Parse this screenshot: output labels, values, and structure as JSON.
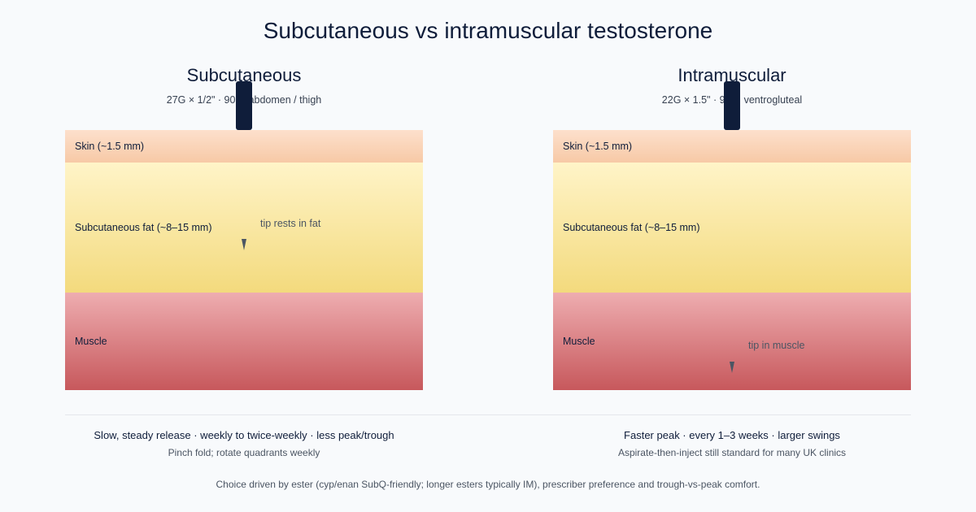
{
  "title": "Subcutaneous vs intramuscular testosterone",
  "panels": [
    {
      "title": "Subcutaneous",
      "subtitle": "27G × 1/2\" · 90° · abdomen / thigh",
      "layers": {
        "skin": "Skin (~1.5 mm)",
        "fat": "Subcutaneous fat (~8–15 mm)",
        "muscle": "Muscle"
      },
      "tip_note": "tip rests in fat",
      "summary": "Slow, steady release · weekly to twice-weekly · less peak/trough",
      "summary_sub": "Pinch fold; rotate quadrants weekly"
    },
    {
      "title": "Intramuscular",
      "subtitle": "22G × 1.5\" · 90° · ventrogluteal",
      "layers": {
        "skin": "Skin (~1.5 mm)",
        "fat": "Subcutaneous fat (~8–15 mm)",
        "muscle": "Muscle"
      },
      "tip_note": "tip in muscle",
      "summary": "Faster peak · every 1–3 weeks · larger swings",
      "summary_sub": "Aspirate-then-inject still standard for many UK clinics"
    }
  ],
  "footnote": "Choice driven by ester (cyp/enan SubQ-friendly; longer esters typically IM), prescriber preference and trough-vs-peak comfort.",
  "colors": {
    "needle": "#0f1d3a",
    "skin": "#f7c9a6",
    "fat": "#f3da7d",
    "muscle": "#c7585c"
  }
}
